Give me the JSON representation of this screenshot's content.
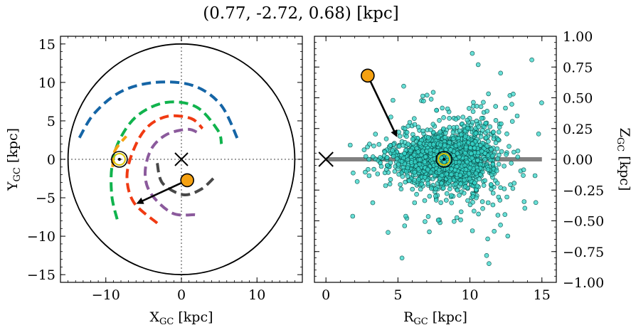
{
  "title": "(0.77, -2.72, 0.68) [kpc]",
  "colors": {
    "orange": "#f5a111",
    "cyan": "#35d4c8",
    "blue": "#1565a6",
    "green": "#10b34d",
    "red": "#f03a12",
    "purple": "#8b5a9c",
    "darkgray": "#484848",
    "gray": "#808080",
    "yellow": "#d9c200"
  },
  "chart_data": [
    {
      "type": "scatter",
      "name": "galactic-plane-xy",
      "xlabel": "X",
      "xlabel_sub": "GC",
      "xlabel_unit": " [kpc]",
      "ylabel": "Y",
      "ylabel_sub": "GC",
      "ylabel_unit": " [kpc]",
      "xlim": [
        -16,
        16
      ],
      "ylim": [
        -16,
        16
      ],
      "xticks": [
        -10,
        0,
        10
      ],
      "yticks": [
        -15,
        -10,
        -5,
        0,
        5,
        10,
        15
      ],
      "xticklabels": [
        "−10",
        "0",
        "10"
      ],
      "yticklabels": [
        "−15",
        "−10",
        "−5",
        "0",
        "5",
        "10",
        "15"
      ],
      "boundary_radius": 15,
      "galactic_center": [
        0,
        0
      ],
      "sun": [
        -8.2,
        0
      ],
      "object": [
        0.77,
        -2.72
      ],
      "velocity_arrow_to": [
        -5.8,
        -5.7
      ],
      "spiral_arms": [
        {
          "color": "blue",
          "points": [
            [
              -13.5,
              2.8
            ],
            [
              -11.5,
              6.0
            ],
            [
              -8.0,
              8.8
            ],
            [
              -3.5,
              10.0
            ],
            [
              1.5,
              9.6
            ],
            [
              5.2,
              7.1
            ],
            [
              7.5,
              2.5
            ]
          ]
        },
        {
          "color": "green",
          "points": [
            [
              -8.5,
              -7.8
            ],
            [
              -9.2,
              -4.8
            ],
            [
              -9.2,
              -1.0
            ],
            [
              -8.2,
              2.5
            ],
            [
              -5.8,
              5.7
            ],
            [
              -2.0,
              7.4
            ],
            [
              2.0,
              6.8
            ],
            [
              4.8,
              3.8
            ],
            [
              5.3,
              2.0
            ]
          ]
        },
        {
          "color": "red",
          "points": [
            [
              -3.2,
              -8.3
            ],
            [
              -6.3,
              -5.6
            ],
            [
              -7.2,
              -2.2
            ],
            [
              -6.3,
              1.3
            ],
            [
              -4.5,
              4.2
            ],
            [
              -1.8,
              5.6
            ],
            [
              1.3,
              5.3
            ],
            [
              2.8,
              4.0
            ]
          ]
        },
        {
          "color": "purple",
          "points": [
            [
              1.8,
              -7.2
            ],
            [
              -1.2,
              -7.0
            ],
            [
              -4.0,
              -4.5
            ],
            [
              -4.8,
              -1.8
            ],
            [
              -4.0,
              1.3
            ],
            [
              -2.0,
              3.2
            ],
            [
              0.8,
              3.9
            ],
            [
              2.3,
              3.4
            ]
          ]
        },
        {
          "color": "darkgray",
          "points": [
            [
              -3.2,
              -0.5
            ],
            [
              -2.5,
              -3.1
            ],
            [
              0.2,
              -4.6
            ],
            [
              2.6,
              -3.9
            ],
            [
              4.5,
              -2.2
            ]
          ]
        },
        {
          "color": "orange",
          "points": [
            [
              -9.1,
              -1.0
            ],
            [
              -8.8,
              1.1
            ],
            [
              -7.3,
              3.0
            ]
          ]
        }
      ]
    },
    {
      "type": "scatter",
      "name": "rz-distribution",
      "xlabel": "R",
      "xlabel_sub": "GC",
      "xlabel_unit": " [kpc]",
      "ylabel": "Z",
      "ylabel_sub": "GC",
      "ylabel_unit": " [kpc]",
      "xlim": [
        -0.8,
        16
      ],
      "ylim": [
        -1.0,
        1.0
      ],
      "xticks": [
        0,
        5,
        10,
        15
      ],
      "yticks": [
        -1.0,
        -0.75,
        -0.5,
        -0.25,
        0.0,
        0.25,
        0.5,
        0.75,
        1.0
      ],
      "xticklabels": [
        "0",
        "5",
        "10",
        "15"
      ],
      "yticklabels": [
        "−1.00",
        "−0.75",
        "−0.50",
        "−0.25",
        "0.00",
        "0.25",
        "0.50",
        "0.75",
        "1.00"
      ],
      "disk_line": [
        [
          0,
          0
        ],
        [
          15,
          0
        ]
      ],
      "galactic_center": [
        0,
        0
      ],
      "sun": [
        8.2,
        0
      ],
      "object": [
        2.9,
        0.68
      ],
      "velocity_arrow_to": [
        4.9,
        0.19
      ],
      "scatter_count": 1800,
      "scatter_center": [
        8.3,
        0.0
      ],
      "scatter_sigma_r": 1.9,
      "scatter_sigma_z_core": 0.1
    }
  ]
}
